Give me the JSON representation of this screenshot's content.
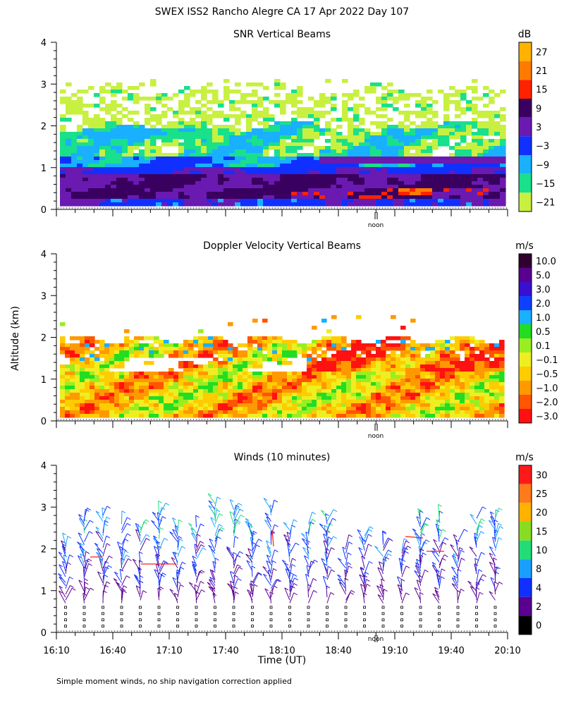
{
  "figure_title": "SWEX ISS2 Rancho Alegre CA  17 Apr 2022 Day 107",
  "y_axis_label": "Altitude (km)",
  "x_axis_label": "Time (UT)",
  "noon_label": "noon",
  "footnote": "Simple moment winds, no ship navigation correction applied",
  "panels": [
    {
      "title": "SNR Vertical Beams",
      "unit": "dB",
      "colorbar_labels": [
        "27",
        "21",
        "15",
        "9",
        "3",
        "−3",
        "−9",
        "−15",
        "−21"
      ],
      "colorbar_colors": [
        "#ffb300",
        "#ff7a00",
        "#ff2200",
        "#3a0060",
        "#6a1ab0",
        "#1030ff",
        "#19b0ff",
        "#19e08a",
        "#c8f040"
      ]
    },
    {
      "title": "Doppler Velocity Vertical Beams",
      "unit": "m/s",
      "colorbar_labels": [
        "10.0",
        "5.0",
        "3.0",
        "2.0",
        "1.0",
        "0.5",
        "0.1",
        "−0.1",
        "−0.5",
        "−1.0",
        "−2.0",
        "−3.0"
      ],
      "colorbar_colors": [
        "#300030",
        "#5a0090",
        "#3a10d0",
        "#1040ff",
        "#19b0ff",
        "#22dd22",
        "#99ee22",
        "#eeee22",
        "#ffcc00",
        "#ff9900",
        "#ff5500",
        "#ff1111"
      ]
    },
    {
      "title": "Winds (10 minutes)",
      "unit": "m/s",
      "colorbar_labels": [
        "30",
        "25",
        "20",
        "15",
        "10",
        "8",
        "4",
        "2",
        "0"
      ],
      "colorbar_colors": [
        "#ff1a1a",
        "#ff7a1a",
        "#ffb300",
        "#88dd22",
        "#22dd77",
        "#19a0ff",
        "#1030ff",
        "#5a0090",
        "#000000"
      ]
    }
  ],
  "chart_data": [
    {
      "type": "heatmap",
      "title": "SNR Vertical Beams",
      "ylabel": "Altitude (km)",
      "ylim": [
        0,
        4
      ],
      "y_ticks": [
        "0",
        "1",
        "2",
        "3",
        "4"
      ],
      "unit": "dB",
      "x_range": [
        "16:10",
        "20:10"
      ],
      "description_levels_db": [
        -21,
        -15,
        -9,
        -3,
        3,
        9,
        15,
        21,
        27
      ]
    },
    {
      "type": "heatmap",
      "title": "Doppler Velocity Vertical Beams",
      "ylabel": "Altitude (km)",
      "ylim": [
        0,
        4
      ],
      "y_ticks": [
        "0",
        "1",
        "2",
        "3",
        "4"
      ],
      "unit": "m/s",
      "x_range": [
        "16:10",
        "20:10"
      ]
    },
    {
      "type": "scatter",
      "title": "Winds (10 minutes)",
      "ylabel": "Altitude (km)",
      "xlabel": "Time (UT)",
      "ylim": [
        0,
        4
      ],
      "y_ticks": [
        "0",
        "1",
        "2",
        "3",
        "4"
      ],
      "x_ticks": [
        "16:10",
        "16:40",
        "17:10",
        "17:40",
        "18:10",
        "18:40",
        "19:10",
        "19:40",
        "20:10"
      ],
      "unit": "m/s",
      "profiles_time_range": [
        "16:10",
        "20:10"
      ],
      "profile_interval_minutes": 10
    }
  ]
}
